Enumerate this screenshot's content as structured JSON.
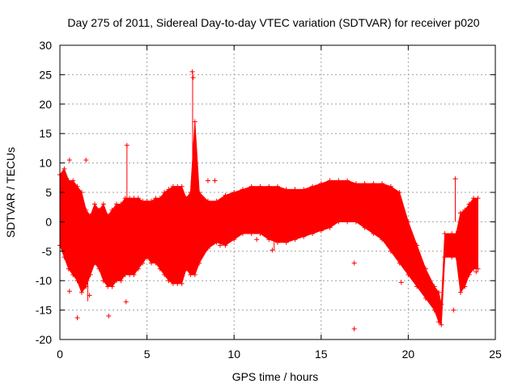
{
  "chart_data": {
    "type": "scatter",
    "title": "Day 275 of 2011, Sidereal Day-to-day VTEC variation (SDTVAR) for receiver p020",
    "xlabel": "GPS time / hours",
    "ylabel": "SDTVAR / TECUs",
    "xlim": [
      0,
      25
    ],
    "ylim": [
      -20,
      30
    ],
    "x_ticks": [
      0,
      5,
      10,
      15,
      20,
      25
    ],
    "y_ticks": [
      -20,
      -15,
      -10,
      -5,
      0,
      5,
      10,
      15,
      20,
      25,
      30
    ],
    "grid": true,
    "legend": "none",
    "series": [
      {
        "name": "SDTVAR",
        "color": "#ff0000",
        "marker": "plus",
        "band_x": [
          0.0,
          0.25,
          0.5,
          0.75,
          1.0,
          1.25,
          1.5,
          1.75,
          2.0,
          2.25,
          2.5,
          2.75,
          3.0,
          3.25,
          3.5,
          3.75,
          4.0,
          4.25,
          4.5,
          4.75,
          5.0,
          5.25,
          5.5,
          5.75,
          6.0,
          6.25,
          6.5,
          6.75,
          7.0,
          7.25,
          7.5,
          7.75,
          8.0,
          8.5,
          9.0,
          9.5,
          10.0,
          10.5,
          11.0,
          11.5,
          12.0,
          12.5,
          13.0,
          13.5,
          14.0,
          14.5,
          15.0,
          15.5,
          16.0,
          16.5,
          17.0,
          17.5,
          18.0,
          18.5,
          19.0,
          19.5,
          20.0,
          20.5,
          21.0,
          21.5,
          21.75,
          21.9,
          22.1,
          22.5,
          22.75,
          23.0,
          23.25,
          23.5,
          23.75,
          24.0
        ],
        "band_upper": [
          8,
          9,
          7,
          7,
          6,
          5,
          2,
          1,
          3,
          2,
          3,
          1,
          2,
          3,
          3,
          4,
          4,
          4,
          4,
          3.5,
          3.5,
          3.5,
          4,
          4,
          5,
          5.5,
          6,
          6,
          6,
          4,
          5,
          17,
          5,
          3.5,
          3.5,
          4.5,
          5,
          5.5,
          6,
          6,
          6,
          6,
          5.5,
          5.5,
          5.5,
          6,
          6.5,
          7,
          7,
          7,
          6.5,
          6.5,
          6.5,
          6.5,
          6,
          5,
          0,
          -4,
          -8,
          -11,
          -12,
          -14,
          -2,
          -2,
          -2,
          1.5,
          2,
          3,
          4,
          4
        ],
        "band_lower": [
          -4,
          -6,
          -8,
          -9,
          -10,
          -12,
          -11,
          -9,
          -7,
          -8,
          -10,
          -11,
          -11,
          -10,
          -10,
          -9,
          -9,
          -9,
          -8,
          -7,
          -6,
          -7,
          -7,
          -8,
          -9,
          -10,
          -10.5,
          -10.5,
          -10.5,
          -8,
          -9,
          -9,
          -7,
          -4.5,
          -3.5,
          -4,
          -3,
          -2,
          -2,
          -2,
          -3,
          -3.5,
          -3.5,
          -3,
          -2.5,
          -2,
          -1.5,
          -1,
          0,
          0,
          0,
          -1,
          -2,
          -3,
          -5,
          -7,
          -9,
          -11,
          -13,
          -15,
          -17,
          -17.5,
          -6,
          -6,
          -6,
          -12,
          -11,
          -9,
          -8,
          -8
        ],
        "outliers": [
          {
            "x": 0.55,
            "y": 10.5
          },
          {
            "x": 1.5,
            "y": 10.5
          },
          {
            "x": 0.55,
            "y": -11.8
          },
          {
            "x": 1.0,
            "y": -16.3
          },
          {
            "x": 2.8,
            "y": -16.0
          },
          {
            "x": 3.8,
            "y": -13.6
          },
          {
            "x": 3.85,
            "y": 13.0
          },
          {
            "x": 1.7,
            "y": -12.5
          },
          {
            "x": 7.6,
            "y": 25.5
          },
          {
            "x": 7.65,
            "y": 24.5
          },
          {
            "x": 8.9,
            "y": 7.0
          },
          {
            "x": 8.5,
            "y": 7.0
          },
          {
            "x": 9.2,
            "y": -4.0
          },
          {
            "x": 11.3,
            "y": -3.0
          },
          {
            "x": 12.2,
            "y": -4.8
          },
          {
            "x": 13.0,
            "y": -3.0
          },
          {
            "x": 14.2,
            "y": 5.0
          },
          {
            "x": 16.9,
            "y": -7.0
          },
          {
            "x": 16.9,
            "y": -18.2
          },
          {
            "x": 19.6,
            "y": -10.3
          },
          {
            "x": 20.1,
            "y": -9.0
          },
          {
            "x": 20.4,
            "y": -9.8
          },
          {
            "x": 22.7,
            "y": 7.3
          },
          {
            "x": 22.6,
            "y": -15.0
          },
          {
            "x": 23.9,
            "y": -8.5
          }
        ],
        "spikes": [
          {
            "x": 3.85,
            "y_from": 2,
            "y_to": 13
          },
          {
            "x": 7.62,
            "y_from": 5,
            "y_to": 25.5
          },
          {
            "x": 22.7,
            "y_from": 0,
            "y_to": 7.3
          },
          {
            "x": 1.6,
            "y_from": -10,
            "y_to": -13.5
          },
          {
            "x": 12.3,
            "y_from": -2,
            "y_to": -4.8
          }
        ]
      }
    ]
  }
}
